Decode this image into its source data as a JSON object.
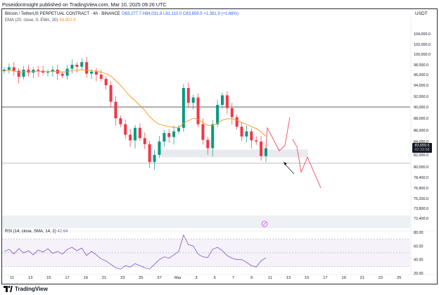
{
  "header": {
    "published_text": "PoseidonInsight published on TradingView.com, Mar 10, 2025 09:26 UTC"
  },
  "legend": {
    "symbol": "Bitcoin / TetherUS PERPETUAL CONTRACT · 4h · BINANCE",
    "ohlc": "O83,277.7 H84,031.8 L81,110.0 C83,659.5 +1,381.9 (+1.68%)",
    "ema_label": "EMA (20, close, 0, EMA, 20)",
    "ema_value": "84,902.8"
  },
  "price_axis": {
    "currency": "USDT",
    "last_price": "83,659.5",
    "countdown": "02:33:58"
  },
  "rsi": {
    "label": "RSI (14, close, SMA, 14, 2)",
    "value": "42.64"
  },
  "footer": {
    "brand": "TradingView"
  },
  "colors": {
    "up": "#089981",
    "down": "#f23645",
    "ema": "#f7931a",
    "rsi": "#7e57c2",
    "projection": "#f23645",
    "zone": "#e0e3eb"
  },
  "chart_data": [
    {
      "type": "candlestick",
      "title": "Bitcoin / TetherUS PERPETUAL CONTRACT · 4h · BINANCE",
      "x_tick_labels": [
        "11",
        "13",
        "15",
        "17",
        "19",
        "21",
        "23",
        "25",
        "27",
        "Mar",
        "3",
        "5",
        "7",
        "9",
        "11",
        "13",
        "15",
        "17",
        "19",
        "21",
        "23",
        "25"
      ],
      "y_tick_labels": [
        "104,000.0",
        "102,000.0",
        "100,000.0",
        "98,000.0",
        "96,000.0",
        "94,000.0",
        "92,000.0",
        "90,000.0",
        "88,000.0",
        "86,000.0",
        "84,000.0",
        "82,000.0",
        "80,000.0",
        "78,400.0",
        "76,800.0",
        "75,200.0",
        "73,800.0",
        "72,400.0"
      ],
      "ylim": [
        72400,
        104000
      ],
      "horizontal_levels": [
        90000,
        80600
      ],
      "support_zone": [
        81600,
        82800
      ],
      "price_path": [
        97000,
        97500,
        96800,
        95600,
        97000,
        96400,
        97000,
        96800,
        96400,
        96600,
        97000,
        96200,
        95800,
        97200,
        98000,
        97600,
        98500,
        96200,
        96600,
        96000,
        95200,
        94000,
        91000,
        88000,
        87000,
        85200,
        84200,
        86400,
        84600,
        83600,
        80800,
        82000,
        84000,
        85500,
        84800,
        85800,
        86400,
        93500,
        90800,
        91800,
        87000,
        84300,
        83000,
        87000,
        90400,
        92200,
        89800,
        88200,
        86600,
        84900,
        85800,
        84200,
        84000,
        81800,
        83000
      ],
      "ema_path": [
        96800,
        96900,
        96700,
        96500,
        96600,
        96600,
        96600,
        96700,
        96600,
        96600,
        96700,
        96600,
        96500,
        96600,
        96800,
        96900,
        97000,
        96900,
        96800,
        96700,
        96500,
        96200,
        95700,
        94900,
        94000,
        93000,
        92000,
        91200,
        90300,
        89400,
        88300,
        87500,
        87000,
        86800,
        86600,
        86500,
        86400,
        87200,
        87600,
        88000,
        87800,
        87300,
        86800,
        86800,
        87200,
        87700,
        87900,
        87900,
        87700,
        87300,
        87000,
        86600,
        86300,
        85700,
        84900
      ],
      "projection_path": [
        83000,
        86400,
        82600,
        83400,
        88200
      ],
      "projection_path_2": [
        83200,
        79200,
        81600,
        76800,
        75000
      ]
    },
    {
      "type": "line",
      "title": "RSI (14, close, SMA, 14, 2)",
      "y_tick_labels": [
        "80.00",
        "60.00",
        "40.00",
        "20.00"
      ],
      "ylim": [
        20,
        80
      ],
      "band": [
        30,
        70
      ],
      "values": [
        52,
        55,
        48,
        56,
        50,
        53,
        47,
        54,
        51,
        56,
        49,
        52,
        48,
        55,
        58,
        53,
        57,
        46,
        52,
        47,
        41,
        38,
        33,
        28,
        26,
        31,
        29,
        34,
        31,
        28,
        26,
        33,
        40,
        44,
        42,
        47,
        52,
        76,
        62,
        60,
        48,
        44,
        43,
        55,
        58,
        53,
        46,
        42,
        40,
        40,
        36,
        31,
        29,
        38,
        42.6
      ]
    }
  ]
}
